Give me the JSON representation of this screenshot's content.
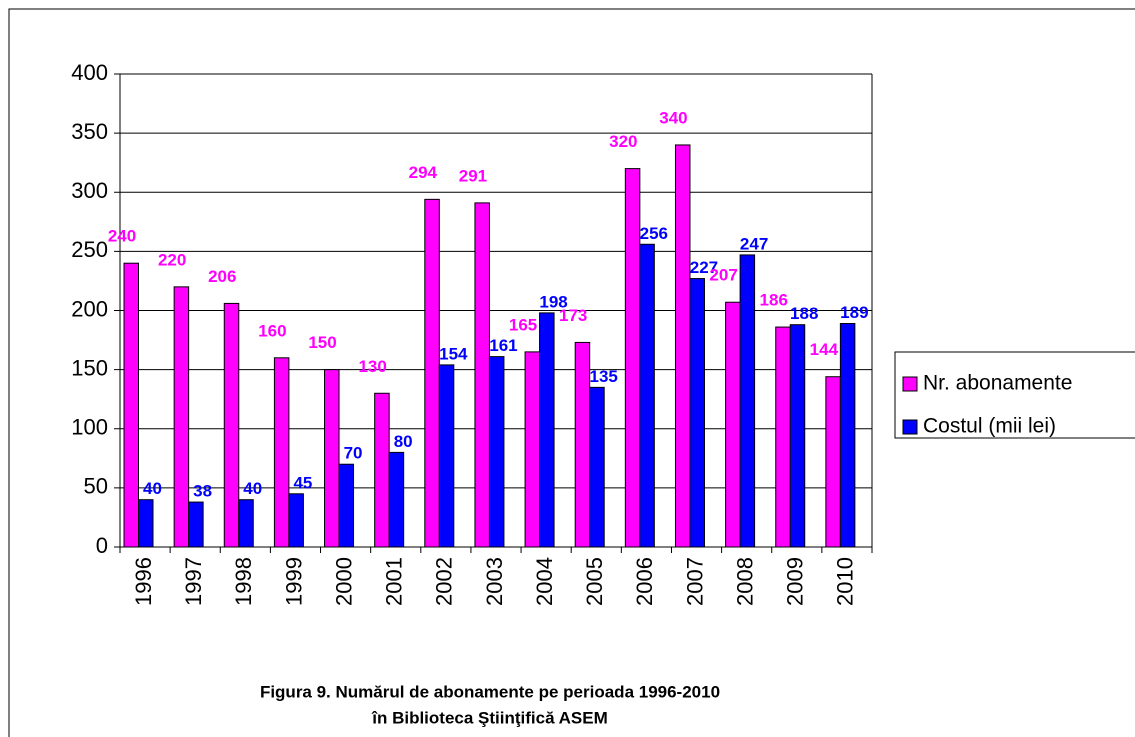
{
  "chart_data": {
    "type": "bar",
    "title": "Figura 9. Numărul de abonamente pe perioada 1996-2010",
    "subtitle": "în Biblioteca Ştiinţifică ASEM",
    "categories": [
      "1996",
      "1997",
      "1998",
      "1999",
      "2000",
      "2001",
      "2002",
      "2003",
      "2004",
      "2005",
      "2006",
      "2007",
      "2008",
      "2009",
      "2010"
    ],
    "series": [
      {
        "name": "Nr. abonamente",
        "color": "#ff00ff",
        "values": [
          240,
          220,
          206,
          160,
          150,
          130,
          294,
          291,
          165,
          173,
          320,
          340,
          207,
          186,
          144
        ]
      },
      {
        "name": "Costul (mii lei)",
        "color": "#0000ff",
        "values": [
          40,
          38,
          40,
          45,
          70,
          80,
          154,
          161,
          198,
          135,
          256,
          227,
          247,
          188,
          189
        ]
      }
    ],
    "ylim": [
      0,
      400
    ],
    "yticks": [
      0,
      50,
      100,
      150,
      200,
      250,
      300,
      350,
      400
    ],
    "grid": true,
    "legend": "right"
  }
}
